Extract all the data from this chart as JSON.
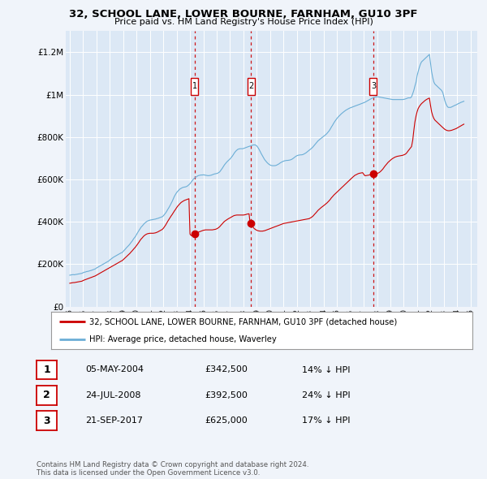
{
  "title": "32, SCHOOL LANE, LOWER BOURNE, FARNHAM, GU10 3PF",
  "subtitle": "Price paid vs. HM Land Registry's House Price Index (HPI)",
  "background_color": "#f0f4fa",
  "plot_bg_color": "#dce8f5",
  "ylim": [
    0,
    1300000
  ],
  "xlim_start": 1994.7,
  "xlim_end": 2025.5,
  "yticks": [
    0,
    200000,
    400000,
    600000,
    800000,
    1000000,
    1200000
  ],
  "ytick_labels": [
    "£0",
    "£200K",
    "£400K",
    "£600K",
    "£800K",
    "£1M",
    "£1.2M"
  ],
  "sale_dates": [
    2004.35,
    2008.56,
    2017.72
  ],
  "sale_prices": [
    342500,
    392500,
    625000
  ],
  "sale_labels": [
    "1",
    "2",
    "3"
  ],
  "hpi_color": "#6baed6",
  "price_color": "#cc0000",
  "dashed_line_color": "#cc0000",
  "legend_items": [
    "32, SCHOOL LANE, LOWER BOURNE, FARNHAM, GU10 3PF (detached house)",
    "HPI: Average price, detached house, Waverley"
  ],
  "table_rows": [
    {
      "num": "1",
      "date": "05-MAY-2004",
      "price": "£342,500",
      "hpi": "14% ↓ HPI"
    },
    {
      "num": "2",
      "date": "24-JUL-2008",
      "price": "£392,500",
      "hpi": "24% ↓ HPI"
    },
    {
      "num": "3",
      "date": "21-SEP-2017",
      "price": "£625,000",
      "hpi": "17% ↓ HPI"
    }
  ],
  "footnote": "Contains HM Land Registry data © Crown copyright and database right 2024.\nThis data is licensed under the Open Government Licence v3.0.",
  "hpi_years": [
    1995.0,
    1995.08,
    1995.17,
    1995.25,
    1995.33,
    1995.42,
    1995.5,
    1995.58,
    1995.67,
    1995.75,
    1995.83,
    1995.92,
    1996.0,
    1996.08,
    1996.17,
    1996.25,
    1996.33,
    1996.42,
    1996.5,
    1996.58,
    1996.67,
    1996.75,
    1996.83,
    1996.92,
    1997.0,
    1997.08,
    1997.17,
    1997.25,
    1997.33,
    1997.42,
    1997.5,
    1997.58,
    1997.67,
    1997.75,
    1997.83,
    1997.92,
    1998.0,
    1998.08,
    1998.17,
    1998.25,
    1998.33,
    1998.42,
    1998.5,
    1998.58,
    1998.67,
    1998.75,
    1998.83,
    1998.92,
    1999.0,
    1999.08,
    1999.17,
    1999.25,
    1999.33,
    1999.42,
    1999.5,
    1999.58,
    1999.67,
    1999.75,
    1999.83,
    1999.92,
    2000.0,
    2000.08,
    2000.17,
    2000.25,
    2000.33,
    2000.42,
    2000.5,
    2000.58,
    2000.67,
    2000.75,
    2000.83,
    2000.92,
    2001.0,
    2001.08,
    2001.17,
    2001.25,
    2001.33,
    2001.42,
    2001.5,
    2001.58,
    2001.67,
    2001.75,
    2001.83,
    2001.92,
    2002.0,
    2002.08,
    2002.17,
    2002.25,
    2002.33,
    2002.42,
    2002.5,
    2002.58,
    2002.67,
    2002.75,
    2002.83,
    2002.92,
    2003.0,
    2003.08,
    2003.17,
    2003.25,
    2003.33,
    2003.42,
    2003.5,
    2003.58,
    2003.67,
    2003.75,
    2003.83,
    2003.92,
    2004.0,
    2004.08,
    2004.17,
    2004.25,
    2004.33,
    2004.42,
    2004.5,
    2004.58,
    2004.67,
    2004.75,
    2004.83,
    2004.92,
    2005.0,
    2005.08,
    2005.17,
    2005.25,
    2005.33,
    2005.42,
    2005.5,
    2005.58,
    2005.67,
    2005.75,
    2005.83,
    2005.92,
    2006.0,
    2006.08,
    2006.17,
    2006.25,
    2006.33,
    2006.42,
    2006.5,
    2006.58,
    2006.67,
    2006.75,
    2006.83,
    2006.92,
    2007.0,
    2007.08,
    2007.17,
    2007.25,
    2007.33,
    2007.42,
    2007.5,
    2007.58,
    2007.67,
    2007.75,
    2007.83,
    2007.92,
    2008.0,
    2008.08,
    2008.17,
    2008.25,
    2008.33,
    2008.42,
    2008.5,
    2008.58,
    2008.67,
    2008.75,
    2008.83,
    2008.92,
    2009.0,
    2009.08,
    2009.17,
    2009.25,
    2009.33,
    2009.42,
    2009.5,
    2009.58,
    2009.67,
    2009.75,
    2009.83,
    2009.92,
    2010.0,
    2010.08,
    2010.17,
    2010.25,
    2010.33,
    2010.42,
    2010.5,
    2010.58,
    2010.67,
    2010.75,
    2010.83,
    2010.92,
    2011.0,
    2011.08,
    2011.17,
    2011.25,
    2011.33,
    2011.42,
    2011.5,
    2011.58,
    2011.67,
    2011.75,
    2011.83,
    2011.92,
    2012.0,
    2012.08,
    2012.17,
    2012.25,
    2012.33,
    2012.42,
    2012.5,
    2012.58,
    2012.67,
    2012.75,
    2012.83,
    2012.92,
    2013.0,
    2013.08,
    2013.17,
    2013.25,
    2013.33,
    2013.42,
    2013.5,
    2013.58,
    2013.67,
    2013.75,
    2013.83,
    2013.92,
    2014.0,
    2014.08,
    2014.17,
    2014.25,
    2014.33,
    2014.42,
    2014.5,
    2014.58,
    2014.67,
    2014.75,
    2014.83,
    2014.92,
    2015.0,
    2015.08,
    2015.17,
    2015.25,
    2015.33,
    2015.42,
    2015.5,
    2015.58,
    2015.67,
    2015.75,
    2015.83,
    2015.92,
    2016.0,
    2016.08,
    2016.17,
    2016.25,
    2016.33,
    2016.42,
    2016.5,
    2016.58,
    2016.67,
    2016.75,
    2016.83,
    2016.92,
    2017.0,
    2017.08,
    2017.17,
    2017.25,
    2017.33,
    2017.42,
    2017.5,
    2017.58,
    2017.67,
    2017.75,
    2017.83,
    2017.92,
    2018.0,
    2018.08,
    2018.17,
    2018.25,
    2018.33,
    2018.42,
    2018.5,
    2018.58,
    2018.67,
    2018.75,
    2018.83,
    2018.92,
    2019.0,
    2019.08,
    2019.17,
    2019.25,
    2019.33,
    2019.42,
    2019.5,
    2019.58,
    2019.67,
    2019.75,
    2019.83,
    2019.92,
    2020.0,
    2020.08,
    2020.17,
    2020.25,
    2020.33,
    2020.42,
    2020.5,
    2020.58,
    2020.67,
    2020.75,
    2020.83,
    2020.92,
    2021.0,
    2021.08,
    2021.17,
    2021.25,
    2021.33,
    2021.42,
    2021.5,
    2021.58,
    2021.67,
    2021.75,
    2021.83,
    2021.92,
    2022.0,
    2022.08,
    2022.17,
    2022.25,
    2022.33,
    2022.42,
    2022.5,
    2022.58,
    2022.67,
    2022.75,
    2022.83,
    2022.92,
    2023.0,
    2023.08,
    2023.17,
    2023.25,
    2023.33,
    2023.42,
    2023.5,
    2023.58,
    2023.67,
    2023.75,
    2023.83,
    2023.92,
    2024.0,
    2024.08,
    2024.17,
    2024.25,
    2024.33,
    2024.42,
    2024.5
  ],
  "hpi_values": [
    148000,
    149000,
    150000,
    151000,
    150000,
    151000,
    152000,
    153000,
    154000,
    155000,
    156000,
    157000,
    160000,
    162000,
    163000,
    165000,
    166000,
    167000,
    169000,
    170000,
    172000,
    174000,
    176000,
    178000,
    182000,
    185000,
    188000,
    191000,
    194000,
    197000,
    200000,
    203000,
    206000,
    209000,
    212000,
    215000,
    220000,
    224000,
    228000,
    232000,
    235000,
    238000,
    241000,
    244000,
    247000,
    250000,
    253000,
    255000,
    260000,
    266000,
    272000,
    278000,
    283000,
    289000,
    295000,
    302000,
    309000,
    317000,
    324000,
    331000,
    340000,
    349000,
    358000,
    366000,
    374000,
    380000,
    386000,
    392000,
    397000,
    401000,
    404000,
    406000,
    408000,
    409000,
    410000,
    411000,
    412000,
    413000,
    415000,
    416000,
    418000,
    420000,
    422000,
    424000,
    428000,
    434000,
    441000,
    449000,
    458000,
    467000,
    476000,
    486000,
    497000,
    509000,
    520000,
    530000,
    538000,
    544000,
    550000,
    555000,
    558000,
    561000,
    563000,
    564000,
    565000,
    567000,
    570000,
    575000,
    580000,
    587000,
    594000,
    601000,
    606000,
    610000,
    614000,
    617000,
    619000,
    620000,
    621000,
    621000,
    622000,
    621000,
    620000,
    619000,
    618000,
    618000,
    619000,
    620000,
    622000,
    624000,
    626000,
    627000,
    628000,
    630000,
    633000,
    638000,
    645000,
    653000,
    661000,
    669000,
    676000,
    682000,
    687000,
    692000,
    697000,
    703000,
    710000,
    718000,
    726000,
    733000,
    738000,
    742000,
    744000,
    745000,
    745000,
    745000,
    746000,
    748000,
    750000,
    752000,
    754000,
    756000,
    758000,
    760000,
    762000,
    763000,
    763000,
    762000,
    758000,
    751000,
    742000,
    732000,
    722000,
    712000,
    703000,
    694000,
    687000,
    681000,
    676000,
    671000,
    668000,
    666000,
    665000,
    665000,
    665000,
    666000,
    668000,
    671000,
    674000,
    678000,
    681000,
    684000,
    686000,
    688000,
    689000,
    690000,
    690000,
    691000,
    692000,
    694000,
    697000,
    701000,
    705000,
    709000,
    712000,
    714000,
    715000,
    716000,
    716000,
    717000,
    719000,
    722000,
    725000,
    729000,
    733000,
    737000,
    741000,
    746000,
    751000,
    757000,
    763000,
    770000,
    776000,
    782000,
    787000,
    791000,
    795000,
    799000,
    803000,
    807000,
    812000,
    817000,
    823000,
    830000,
    838000,
    847000,
    856000,
    865000,
    873000,
    881000,
    888000,
    894000,
    900000,
    905000,
    910000,
    915000,
    919000,
    923000,
    927000,
    930000,
    933000,
    936000,
    938000,
    940000,
    942000,
    944000,
    946000,
    948000,
    950000,
    952000,
    954000,
    956000,
    958000,
    960000,
    962000,
    964000,
    967000,
    970000,
    973000,
    976000,
    979000,
    982000,
    984000,
    986000,
    988000,
    990000,
    990000,
    990000,
    989000,
    988000,
    987000,
    986000,
    985000,
    984000,
    983000,
    982000,
    981000,
    980000,
    979000,
    978000,
    977000,
    977000,
    977000,
    977000,
    977000,
    977000,
    977000,
    977000,
    977000,
    977000,
    978000,
    979000,
    981000,
    983000,
    985000,
    985000,
    985000,
    990000,
    1005000,
    1020000,
    1040000,
    1060000,
    1090000,
    1110000,
    1130000,
    1145000,
    1155000,
    1160000,
    1165000,
    1170000,
    1175000,
    1180000,
    1185000,
    1190000,
    1150000,
    1110000,
    1080000,
    1060000,
    1050000,
    1045000,
    1040000,
    1035000,
    1030000,
    1025000,
    1020000,
    1010000,
    990000,
    970000,
    955000,
    945000,
    940000,
    940000,
    940000,
    942000,
    945000,
    948000,
    950000,
    952000,
    955000,
    958000,
    960000,
    963000,
    965000,
    967000,
    969000
  ],
  "price_years": [
    1995.0,
    1995.08,
    1995.17,
    1995.25,
    1995.33,
    1995.42,
    1995.5,
    1995.58,
    1995.67,
    1995.75,
    1995.83,
    1995.92,
    1996.0,
    1996.08,
    1996.17,
    1996.25,
    1996.33,
    1996.42,
    1996.5,
    1996.58,
    1996.67,
    1996.75,
    1996.83,
    1996.92,
    1997.0,
    1997.08,
    1997.17,
    1997.25,
    1997.33,
    1997.42,
    1997.5,
    1997.58,
    1997.67,
    1997.75,
    1997.83,
    1997.92,
    1998.0,
    1998.08,
    1998.17,
    1998.25,
    1998.33,
    1998.42,
    1998.5,
    1998.58,
    1998.67,
    1998.75,
    1998.83,
    1998.92,
    1999.0,
    1999.08,
    1999.17,
    1999.25,
    1999.33,
    1999.42,
    1999.5,
    1999.58,
    1999.67,
    1999.75,
    1999.83,
    1999.92,
    2000.0,
    2000.08,
    2000.17,
    2000.25,
    2000.33,
    2000.42,
    2000.5,
    2000.58,
    2000.67,
    2000.75,
    2000.83,
    2000.92,
    2001.0,
    2001.08,
    2001.17,
    2001.25,
    2001.33,
    2001.42,
    2001.5,
    2001.58,
    2001.67,
    2001.75,
    2001.83,
    2001.92,
    2002.0,
    2002.08,
    2002.17,
    2002.25,
    2002.33,
    2002.42,
    2002.5,
    2002.58,
    2002.67,
    2002.75,
    2002.83,
    2002.92,
    2003.0,
    2003.08,
    2003.17,
    2003.25,
    2003.33,
    2003.42,
    2003.5,
    2003.58,
    2003.67,
    2003.75,
    2003.83,
    2003.92,
    2004.0,
    2004.08,
    2004.17,
    2004.25,
    2004.33,
    2004.42,
    2004.5,
    2004.58,
    2004.67,
    2004.75,
    2004.83,
    2004.92,
    2005.0,
    2005.08,
    2005.17,
    2005.25,
    2005.33,
    2005.42,
    2005.5,
    2005.58,
    2005.67,
    2005.75,
    2005.83,
    2005.92,
    2006.0,
    2006.08,
    2006.17,
    2006.25,
    2006.33,
    2006.42,
    2006.5,
    2006.58,
    2006.67,
    2006.75,
    2006.83,
    2006.92,
    2007.0,
    2007.08,
    2007.17,
    2007.25,
    2007.33,
    2007.42,
    2007.5,
    2007.58,
    2007.67,
    2007.75,
    2007.83,
    2007.92,
    2008.0,
    2008.08,
    2008.17,
    2008.25,
    2008.33,
    2008.42,
    2008.5,
    2008.58,
    2008.67,
    2008.75,
    2008.83,
    2008.92,
    2009.0,
    2009.08,
    2009.17,
    2009.25,
    2009.33,
    2009.42,
    2009.5,
    2009.58,
    2009.67,
    2009.75,
    2009.83,
    2009.92,
    2010.0,
    2010.08,
    2010.17,
    2010.25,
    2010.33,
    2010.42,
    2010.5,
    2010.58,
    2010.67,
    2010.75,
    2010.83,
    2010.92,
    2011.0,
    2011.08,
    2011.17,
    2011.25,
    2011.33,
    2011.42,
    2011.5,
    2011.58,
    2011.67,
    2011.75,
    2011.83,
    2011.92,
    2012.0,
    2012.08,
    2012.17,
    2012.25,
    2012.33,
    2012.42,
    2012.5,
    2012.58,
    2012.67,
    2012.75,
    2012.83,
    2012.92,
    2013.0,
    2013.08,
    2013.17,
    2013.25,
    2013.33,
    2013.42,
    2013.5,
    2013.58,
    2013.67,
    2013.75,
    2013.83,
    2013.92,
    2014.0,
    2014.08,
    2014.17,
    2014.25,
    2014.33,
    2014.42,
    2014.5,
    2014.58,
    2014.67,
    2014.75,
    2014.83,
    2014.92,
    2015.0,
    2015.08,
    2015.17,
    2015.25,
    2015.33,
    2015.42,
    2015.5,
    2015.58,
    2015.67,
    2015.75,
    2015.83,
    2015.92,
    2016.0,
    2016.08,
    2016.17,
    2016.25,
    2016.33,
    2016.42,
    2016.5,
    2016.58,
    2016.67,
    2016.75,
    2016.83,
    2016.92,
    2017.0,
    2017.08,
    2017.17,
    2017.25,
    2017.33,
    2017.42,
    2017.5,
    2017.58,
    2017.67,
    2017.75,
    2017.83,
    2017.92,
    2018.0,
    2018.08,
    2018.17,
    2018.25,
    2018.33,
    2018.42,
    2018.5,
    2018.58,
    2018.67,
    2018.75,
    2018.83,
    2018.92,
    2019.0,
    2019.08,
    2019.17,
    2019.25,
    2019.33,
    2019.42,
    2019.5,
    2019.58,
    2019.67,
    2019.75,
    2019.83,
    2019.92,
    2020.0,
    2020.08,
    2020.17,
    2020.25,
    2020.33,
    2020.42,
    2020.5,
    2020.58,
    2020.67,
    2020.75,
    2020.83,
    2020.92,
    2021.0,
    2021.08,
    2021.17,
    2021.25,
    2021.33,
    2021.42,
    2021.5,
    2021.58,
    2021.67,
    2021.75,
    2021.83,
    2021.92,
    2022.0,
    2022.08,
    2022.17,
    2022.25,
    2022.33,
    2022.42,
    2022.5,
    2022.58,
    2022.67,
    2022.75,
    2022.83,
    2022.92,
    2023.0,
    2023.08,
    2023.17,
    2023.25,
    2023.33,
    2023.42,
    2023.5,
    2023.58,
    2023.67,
    2023.75,
    2023.83,
    2023.92,
    2024.0,
    2024.08,
    2024.17,
    2024.25,
    2024.33,
    2024.42,
    2024.5
  ],
  "price_values": [
    110000,
    111000,
    112000,
    113000,
    113000,
    114000,
    115000,
    116000,
    117000,
    118000,
    119000,
    120000,
    123000,
    125000,
    127000,
    129000,
    131000,
    133000,
    135000,
    137000,
    139000,
    141000,
    143000,
    145000,
    148000,
    151000,
    154000,
    157000,
    160000,
    163000,
    166000,
    169000,
    172000,
    175000,
    178000,
    181000,
    184000,
    187000,
    190000,
    193000,
    196000,
    199000,
    202000,
    205000,
    208000,
    211000,
    214000,
    217000,
    221000,
    226000,
    231000,
    236000,
    241000,
    246000,
    251000,
    257000,
    263000,
    269000,
    275000,
    281000,
    288000,
    295000,
    303000,
    311000,
    318000,
    324000,
    330000,
    335000,
    339000,
    342000,
    344000,
    345000,
    346000,
    346000,
    346000,
    346000,
    347000,
    348000,
    350000,
    352000,
    355000,
    358000,
    361000,
    364000,
    369000,
    376000,
    384000,
    393000,
    402000,
    411000,
    419000,
    427000,
    435000,
    443000,
    451000,
    459000,
    467000,
    474000,
    480000,
    486000,
    491000,
    495000,
    498000,
    501000,
    503000,
    505000,
    507000,
    509000,
    342500,
    335000,
    338000,
    340000,
    343000,
    346000,
    348000,
    350000,
    352000,
    354000,
    356000,
    358000,
    360000,
    361000,
    362000,
    362000,
    362000,
    362000,
    362000,
    362000,
    362000,
    363000,
    364000,
    365000,
    367000,
    370000,
    374000,
    379000,
    385000,
    391000,
    397000,
    402000,
    406000,
    410000,
    413000,
    416000,
    419000,
    422000,
    425000,
    428000,
    430000,
    431000,
    432000,
    432000,
    432000,
    432000,
    432000,
    432000,
    432000,
    433000,
    434000,
    436000,
    437000,
    438000,
    392500,
    385000,
    378000,
    372000,
    367000,
    363000,
    360000,
    358000,
    357000,
    356000,
    356000,
    356000,
    357000,
    358000,
    360000,
    362000,
    364000,
    366000,
    368000,
    370000,
    372000,
    374000,
    376000,
    378000,
    380000,
    382000,
    384000,
    386000,
    388000,
    390000,
    392000,
    393000,
    394000,
    395000,
    396000,
    397000,
    398000,
    399000,
    400000,
    401000,
    402000,
    403000,
    404000,
    405000,
    406000,
    407000,
    408000,
    409000,
    410000,
    411000,
    412000,
    413000,
    414000,
    415000,
    418000,
    421000,
    425000,
    430000,
    436000,
    442000,
    448000,
    454000,
    459000,
    464000,
    468000,
    472000,
    476000,
    480000,
    484000,
    489000,
    494000,
    500000,
    506000,
    513000,
    519000,
    525000,
    530000,
    535000,
    540000,
    545000,
    550000,
    555000,
    560000,
    565000,
    570000,
    575000,
    580000,
    585000,
    590000,
    595000,
    600000,
    605000,
    610000,
    615000,
    619000,
    622000,
    625000,
    627000,
    629000,
    630000,
    631000,
    632000,
    625000,
    618000,
    618000,
    619000,
    620000,
    621000,
    622000,
    623000,
    624000,
    625000,
    626000,
    627000,
    628000,
    630000,
    633000,
    637000,
    642000,
    648000,
    655000,
    662000,
    669000,
    675000,
    681000,
    686000,
    691000,
    695000,
    699000,
    702000,
    705000,
    707000,
    709000,
    710000,
    711000,
    712000,
    713000,
    714000,
    716000,
    718000,
    722000,
    728000,
    735000,
    742000,
    748000,
    755000,
    785000,
    830000,
    870000,
    900000,
    920000,
    935000,
    945000,
    952000,
    958000,
    963000,
    968000,
    972000,
    976000,
    979000,
    982000,
    984000,
    950000,
    920000,
    900000,
    888000,
    880000,
    875000,
    870000,
    865000,
    860000,
    855000,
    850000,
    845000,
    840000,
    836000,
    833000,
    831000,
    830000,
    830000,
    831000,
    832000,
    834000,
    836000,
    838000,
    840000,
    843000,
    846000,
    849000,
    852000,
    855000,
    858000,
    861000
  ]
}
